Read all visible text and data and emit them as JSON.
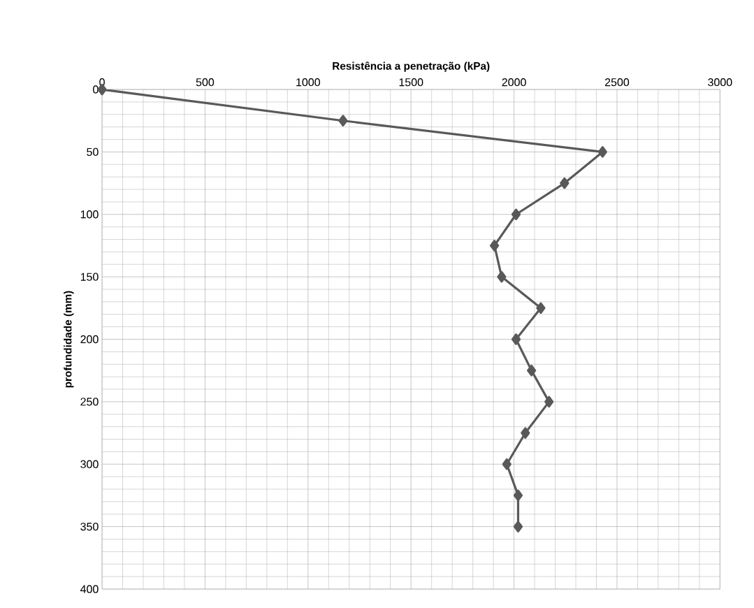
{
  "chart_data": {
    "type": "line",
    "xlabel": "Resistência a penetração (kPa)",
    "ylabel": "profundidade (mm)",
    "series": [
      {
        "color": "#595959",
        "x": [
          0,
          1170,
          2430,
          2245,
          2010,
          1905,
          1940,
          2130,
          2010,
          2085,
          2170,
          2055,
          1965,
          2020,
          2020
        ],
        "values": [
          0,
          25,
          50,
          75,
          100,
          125,
          150,
          175,
          200,
          225,
          250,
          275,
          300,
          325,
          350
        ]
      }
    ],
    "xlim": [
      0,
      3000
    ],
    "xticks": [
      0,
      500,
      1000,
      1500,
      2000,
      2500,
      3000
    ],
    "ylim": [
      400,
      0
    ],
    "yticks": [
      0,
      50,
      100,
      150,
      200,
      250,
      300,
      350,
      400
    ],
    "grid": true,
    "marker": "diamond",
    "line_style": "solid"
  }
}
